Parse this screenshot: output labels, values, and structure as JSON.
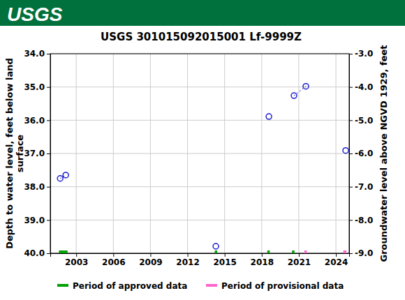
{
  "header": {
    "logo": "USGS"
  },
  "chart_data": {
    "type": "scatter",
    "title": "USGS 301015092015001 Lf-9999Z",
    "ylabel": [
      "Depth to water level, feet below land",
      "surface"
    ],
    "y2label": "Groundwater level above NGVD 1929, feet",
    "x": [
      2001.7,
      2002.15,
      null,
      2014.29,
      null,
      2018.58,
      null,
      2020.61,
      2021.57,
      null,
      2024.79
    ],
    "values": [
      37.75,
      37.65,
      null,
      39.79,
      null,
      35.89,
      null,
      35.26,
      34.98,
      null,
      36.91
    ],
    "color": "#1c1cd0",
    "marker": "circle-open",
    "line_style": "dotted",
    "xlim": [
      2000.9,
      2025.07
    ],
    "xticks": [
      2003,
      2006,
      2009,
      2012,
      2015,
      2018,
      2021,
      2024
    ],
    "ylim": [
      40,
      34
    ],
    "yticks": [
      {
        "value": 34,
        "label": "34.0"
      },
      {
        "value": 35,
        "label": "35.0"
      },
      {
        "value": 36,
        "label": "36.0"
      },
      {
        "value": 37,
        "label": "37.0"
      },
      {
        "value": 38,
        "label": "38.0"
      },
      {
        "value": 39,
        "label": "39.0"
      },
      {
        "value": 40,
        "label": "40.0"
      }
    ],
    "y2lim": [
      -9,
      -3
    ],
    "y2ticks": [
      {
        "value": -3,
        "label": "-3.0"
      },
      {
        "value": -4,
        "label": "-4.0"
      },
      {
        "value": -5,
        "label": "-5.0"
      },
      {
        "value": -6,
        "label": "-6.0"
      },
      {
        "value": -7,
        "label": "-7.0"
      },
      {
        "value": -8,
        "label": "-8.0"
      },
      {
        "value": -9,
        "label": "-9.0"
      }
    ],
    "grid": true,
    "legend": "bottom",
    "periods": [
      {
        "name": "Period of approved data",
        "color": "#00a000",
        "ranges": [
          [
            2001.6,
            2002.3
          ],
          [
            2014.2,
            2014.4
          ],
          [
            2018.45,
            2018.65
          ],
          [
            2020.45,
            2020.65
          ]
        ]
      },
      {
        "name": "Period of provisional data",
        "color": "#ff66cc",
        "ranges": [
          [
            2021.45,
            2021.65
          ],
          [
            2024.6,
            2024.85
          ]
        ]
      }
    ]
  }
}
